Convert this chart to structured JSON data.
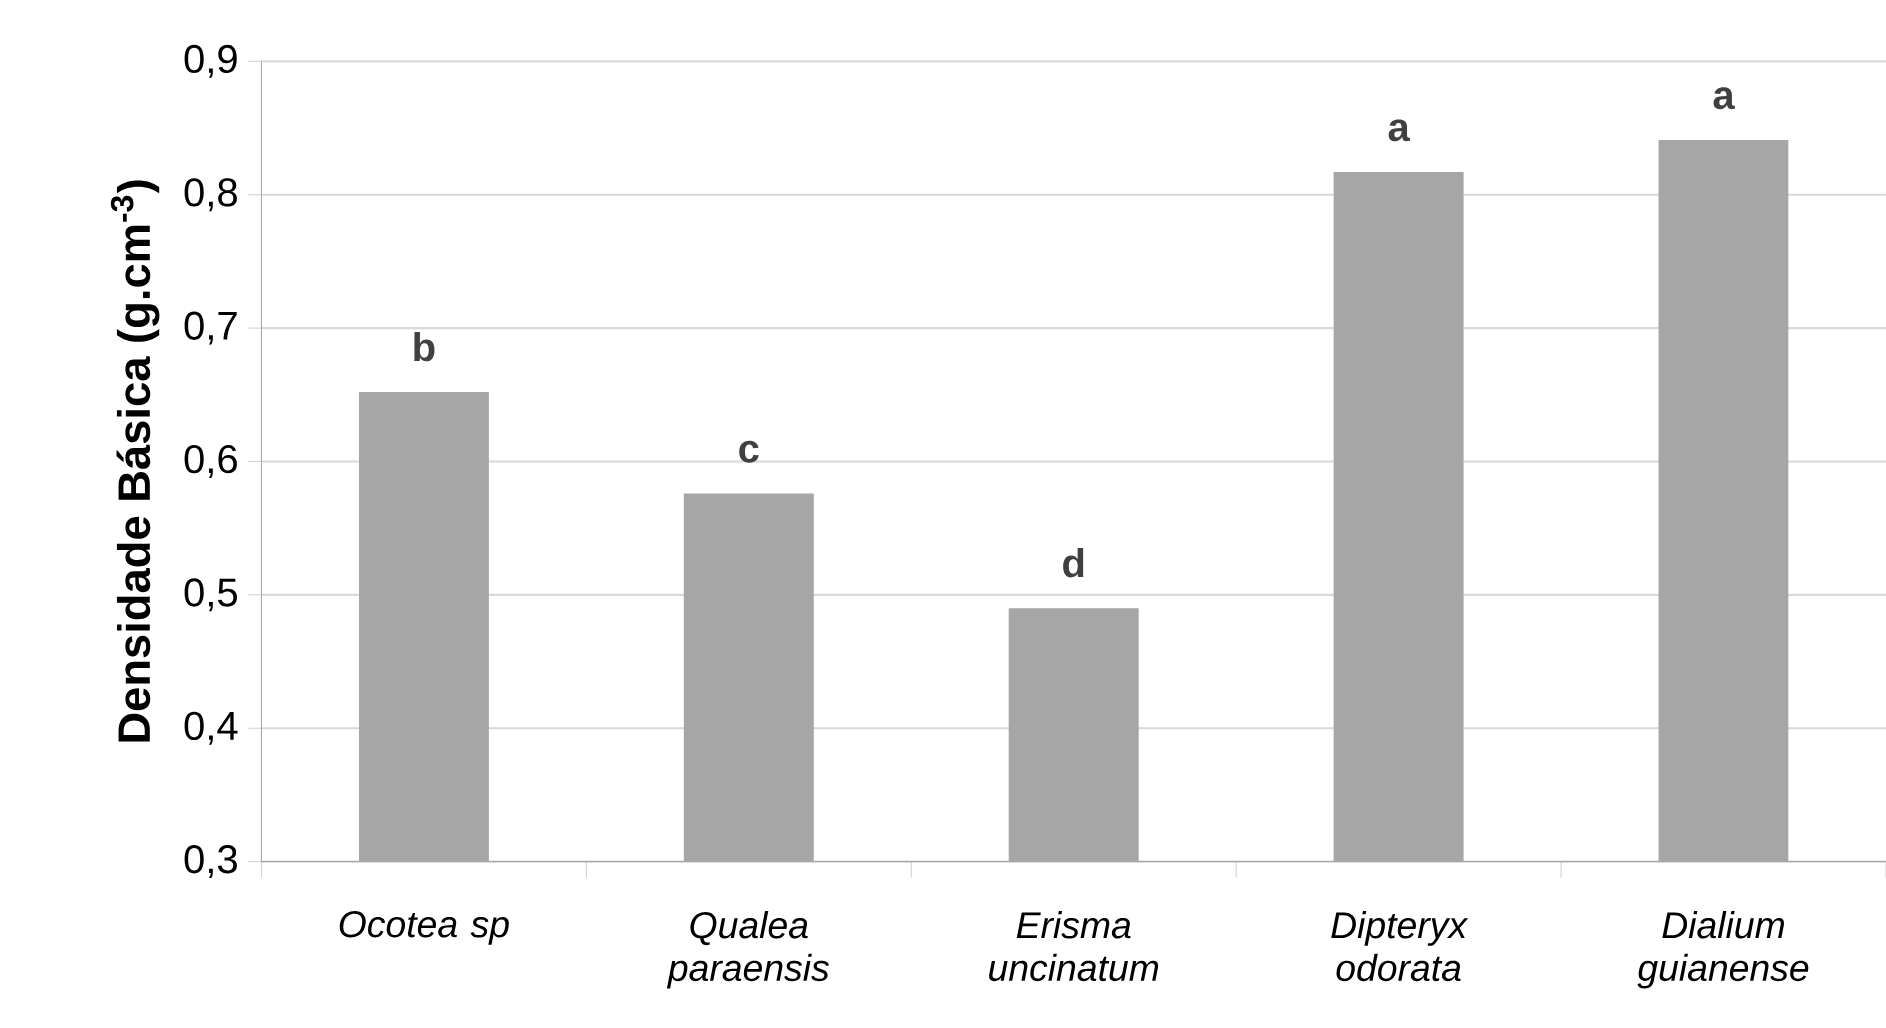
{
  "chart_data": {
    "type": "bar",
    "ylabel": "Densidade Básica (g.cm$^{-3}$)",
    "categories": [
      "Ocotea sp",
      "Qualea paraensis",
      "Erisma uncinatum",
      "Dipteryx odorata",
      "Dialium guianense"
    ],
    "values": [
      0.652,
      0.576,
      0.49,
      0.817,
      0.841
    ],
    "color": "#a6a6a6",
    "ylim": [
      0.3,
      0.9
    ],
    "yticks": [
      {
        "value": 0.3,
        "label": "0,3"
      },
      {
        "value": 0.4,
        "label": "0,4"
      },
      {
        "value": 0.5,
        "label": "0,5"
      },
      {
        "value": 0.6,
        "label": "0,6"
      },
      {
        "value": 0.7,
        "label": "0,7"
      },
      {
        "value": 0.8,
        "label": "0,8"
      },
      {
        "value": 0.9,
        "label": "0,9"
      }
    ],
    "grid": "y",
    "annotations": [
      {
        "text": "b",
        "x": "Ocotea sp",
        "y": 0.652
      },
      {
        "text": "c",
        "x": "Qualea paraensis",
        "y": 0.576
      },
      {
        "text": "d",
        "x": "Erisma uncinatum",
        "y": 0.49
      },
      {
        "text": "a",
        "x": "Dipteryx odorata",
        "y": 0.817
      },
      {
        "text": "a",
        "x": "Dialium guianense",
        "y": 0.841
      }
    ]
  }
}
